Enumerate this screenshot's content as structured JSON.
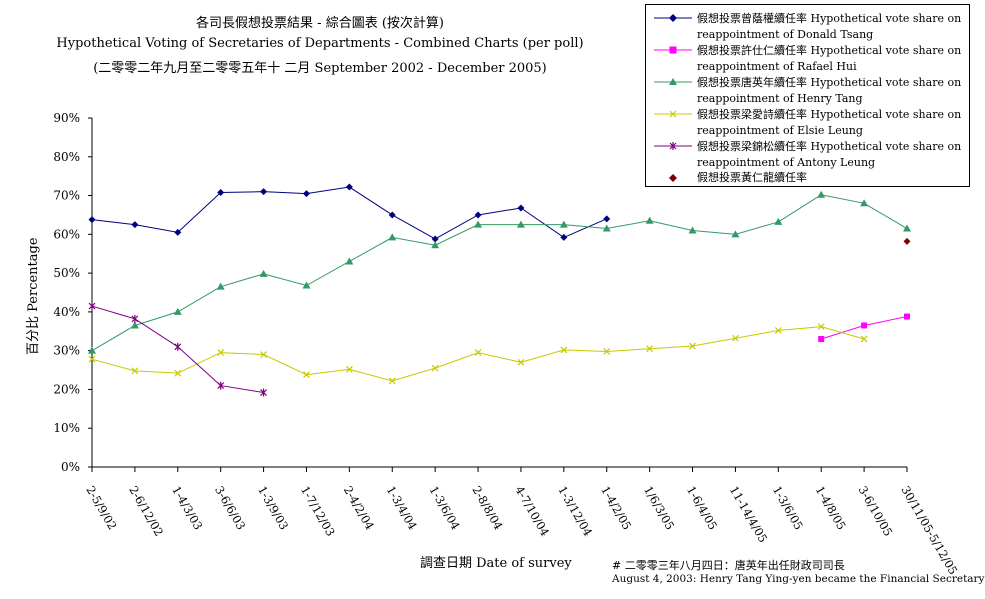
{
  "titles": {
    "line1": "各司長假想投票結果 - 綜合圖表 (按次計算)",
    "line2": "Hypothetical Voting of Secretaries of Departments - Combined Charts (per poll)",
    "line3": "(二零零二年九月至二零零五年十 二月 September 2002 -  December 2005)"
  },
  "notes": {
    "line1": "# 二零零三年八月四日：唐英年出任財政司司長",
    "line2": "August 4, 2003: Henry Tang Ying-yen became the Financial Secretary"
  },
  "chart_data": {
    "type": "line",
    "xlabel": "調查日期  Date of survey",
    "ylabel": "百分比  Percentage",
    "ylim": [
      0,
      90
    ],
    "yticks": [
      "0%",
      "10%",
      "20%",
      "30%",
      "40%",
      "50%",
      "60%",
      "70%",
      "80%",
      "90%"
    ],
    "categories": [
      "2-5/9/02",
      "2-6/12/02",
      "1-4/3/03",
      "3-6/6/03",
      "1-3/9/03",
      "1-7/12/03",
      "2-4/2/04",
      "1-3/4/04",
      "1-3/6/04",
      "2-8/8/04",
      "4-7/10/04",
      "1-3/12/04",
      "1-4/2/05",
      "1/6/3/05",
      "1-6/4/05",
      "11-14/4/05",
      "1-3/6/05",
      "1-4/8/05",
      "3-6/10/05",
      "30/11/05-5/12/05"
    ],
    "legend_position": "top-right",
    "series": [
      {
        "name": "假想投票曾蔭權續任率 Hypothetical vote share on reappointment of Donald Tsang",
        "color": "#000080",
        "marker": "diamond",
        "values": [
          63.8,
          62.5,
          60.5,
          70.8,
          71.0,
          70.5,
          72.2,
          65.0,
          58.8,
          65.0,
          66.8,
          59.2,
          64.0,
          null,
          null,
          null,
          null,
          null,
          null,
          null
        ]
      },
      {
        "name": "假想投票許仕仁續任率 Hypothetical vote share on reappointment of Rafael Hui",
        "color": "#ff00ff",
        "marker": "square",
        "values": [
          null,
          null,
          null,
          null,
          null,
          null,
          null,
          null,
          null,
          null,
          null,
          null,
          null,
          null,
          null,
          null,
          null,
          33.0,
          36.5,
          38.8
        ]
      },
      {
        "name": "假想投票唐英年續任率 Hypothetical vote share on reappointment of Henry Tang",
        "color": "#339966",
        "marker": "triangle",
        "values": [
          30.0,
          36.5,
          40.0,
          46.5,
          49.8,
          46.8,
          53.0,
          59.2,
          57.2,
          62.5,
          62.5,
          62.5,
          61.5,
          63.5,
          61.0,
          60.0,
          63.2,
          70.2,
          68.0,
          61.5
        ]
      },
      {
        "name": "假想投票梁愛詩續任率 Hypothetical vote share on reappointment of Elsie Leung",
        "color": "#c8c800",
        "marker": "x",
        "values": [
          27.8,
          24.8,
          24.2,
          29.5,
          29.0,
          23.8,
          25.2,
          22.2,
          25.5,
          29.5,
          27.0,
          30.2,
          29.8,
          30.5,
          31.2,
          33.2,
          35.2,
          36.2,
          33.0,
          null
        ]
      },
      {
        "name": "假想投票梁錦松續任率 Hypothetical vote share on reappointment of Antony Leung",
        "color": "#800080",
        "marker": "star",
        "values": [
          41.5,
          38.2,
          31.0,
          21.0,
          19.2,
          null,
          null,
          null,
          null,
          null,
          null,
          null,
          null,
          null,
          null,
          null,
          null,
          null,
          null,
          null
        ]
      },
      {
        "name": "假想投票黃仁龍續任率",
        "color": "#800000",
        "marker": "diamond",
        "values": [
          null,
          null,
          null,
          null,
          null,
          null,
          null,
          null,
          null,
          null,
          null,
          null,
          null,
          null,
          null,
          null,
          null,
          null,
          null,
          58.2
        ]
      }
    ]
  }
}
